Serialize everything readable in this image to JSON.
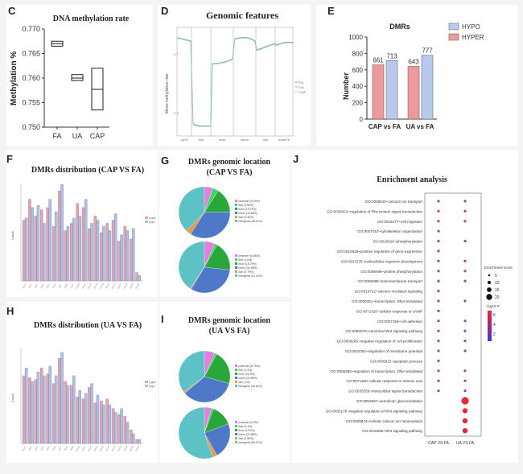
{
  "panels": {
    "C": {
      "label": "C",
      "title": "DNA methylation rate",
      "ylabel": "Methylation %",
      "yticks": [
        "0.770",
        "0.765",
        "0.760",
        "0.755",
        "0.750"
      ],
      "groups": [
        {
          "name": "FA",
          "low": 0.7665,
          "mid": 0.767,
          "high": 0.7675
        },
        {
          "name": "UA",
          "low": 0.7595,
          "mid": 0.76,
          "high": 0.7607
        },
        {
          "name": "CAP",
          "low": 0.7535,
          "mid": 0.7577,
          "high": 0.762
        }
      ]
    },
    "D": {
      "label": "D",
      "title": "Genomic features",
      "ylabel": "Mean methylation rate",
      "regions": [
        "upTk",
        "5utr",
        "exon",
        "intron",
        "3utr",
        "downTk"
      ],
      "legend": [
        "FA",
        "UA",
        "CAP"
      ]
    },
    "E": {
      "label": "E",
      "title": "DMRs",
      "ylabel": "Number",
      "legend": [
        {
          "name": "HYPO",
          "color": "#b9c9ee"
        },
        {
          "name": "HYPER",
          "color": "#ee9a9a"
        }
      ]
    },
    "F": {
      "label": "F",
      "title": "DMRs distribution  (CAP VS FA)",
      "ylabel": "Count",
      "legend": [
        "hyper",
        "hypo"
      ]
    },
    "G": {
      "label": "G",
      "title_line1": "DMRs genomic location",
      "title_line2": "(CAP VS FA)",
      "legend_top": [
        "promoter (5.45%)",
        "5utr (3.63%)",
        "exon (15.75%)",
        "intron (34.66%)",
        "3utr (3.34%)",
        "intergenic (38.01%)"
      ],
      "legend_bottom": [
        "promoter (6.86%)",
        "5utr (1.6%)",
        "exon (18.79%)",
        "intron (32.58%)",
        "3utr (0.79%)",
        "intergenic (41.41%)"
      ]
    },
    "H": {
      "label": "H",
      "title": "DMRs distribution  (UA VS FA)",
      "ylabel": "Count",
      "legend": [
        "hyper",
        "hypo"
      ]
    },
    "I": {
      "label": "I",
      "title_line1": "DMRs genomic location",
      "title_line2": "(UA VS FA)",
      "legend_top": [
        "promoter (6.75%)",
        "5utr (1.4%)",
        "exon (21.6%)",
        "intron (34.89%)",
        "3utr (1%)",
        "intergenic (35.61%)"
      ],
      "legend_bottom": [
        "promoter (4.5%)",
        "5utr (1.4%)",
        "exon (13.6%)",
        "intron (22.88%)",
        "3utr (2.86%)",
        "intergenic (55.97%)"
      ]
    },
    "J": {
      "label": "J",
      "title": "Enrichment analysis",
      "size_legend_title": "Enrichment score",
      "size_legend": [
        "5",
        "10",
        "15",
        "20"
      ],
      "color_legend_title": "-log10 P",
      "color_ticks": [
        "6",
        "4",
        "2"
      ],
      "xlabels": [
        "CAP VS FA",
        "UA VS FA"
      ]
    }
  },
  "chart_data": [
    {
      "type": "bar",
      "panel": "E",
      "title": "DMRs",
      "ylabel": "Number",
      "categories": [
        "CAP vs FA",
        "UA vs FA"
      ],
      "series": [
        {
          "name": "HYPER",
          "values": [
            661,
            643
          ]
        },
        {
          "name": "HYPO",
          "values": [
            713,
            777
          ]
        }
      ],
      "ylim": [
        0,
        1000
      ],
      "yticks": [
        0,
        200,
        400,
        600,
        800,
        1000
      ],
      "legend": "top-right"
    },
    {
      "type": "scatter",
      "panel": "J",
      "title": "Enrichment analysis",
      "x": [
        "CAP VS FA",
        "UA VS FA"
      ],
      "terms": [
        {
          "name": "GO:0006816~calcium ion transport",
          "cap": true,
          "ua": true
        },
        {
          "name": "GO:0035023~regulation of Rho protein signal transduction",
          "cap": true,
          "ua": true
        },
        {
          "name": "GO:0016477~cell migration",
          "cap": true,
          "ua": true
        },
        {
          "name": "GO:0007010~cytoskeleton organization",
          "cap": true,
          "ua": false
        },
        {
          "name": "GO:0016310~phosphorylation",
          "cap": true,
          "ua": true
        },
        {
          "name": "GO:0010628~positive regulation of gene expression",
          "cap": true,
          "ua": false
        },
        {
          "name": "GO:0007275~multicellular organism development",
          "cap": true,
          "ua": true
        },
        {
          "name": "GO:0006468~protein phosphorylation",
          "cap": true,
          "ua": true
        },
        {
          "name": "GO:0055085~transmembrane transport",
          "cap": true,
          "ua": true
        },
        {
          "name": "GO:0019722~calcium-mediated signaling",
          "cap": true,
          "ua": false
        },
        {
          "name": "GO:0006351~transcription, DNA-templated",
          "cap": true,
          "ua": true
        },
        {
          "name": "GO:0071320~cellular response to cAMP",
          "cap": true,
          "ua": false
        },
        {
          "name": "GO:0007155~cell adhesion",
          "cap": true,
          "ua": true
        },
        {
          "name": "GO:0060070~canonical Wnt signaling pathway",
          "cap": true,
          "ua": true
        },
        {
          "name": "GO:0008285~negative regulation of cell proliferation",
          "cap": true,
          "ua": true
        },
        {
          "name": "GO:0042391~regulation of membrane potential",
          "cap": true,
          "ua": true
        },
        {
          "name": "GO:0006915~apoptotic process",
          "cap": true,
          "ua": false
        },
        {
          "name": "GO:0006355~regulation of transcription, DNA-templated",
          "cap": true,
          "ua": true
        },
        {
          "name": "GO:0071300~cellular response to retinoic acid",
          "cap": true,
          "ua": true
        },
        {
          "name": "GO:0035556~intracellular signal transduction",
          "cap": true,
          "ua": true
        },
        {
          "name": "GO:0052697~xenobiotic glucuronidation",
          "cap": false,
          "ua": true
        },
        {
          "name": "GO:0030178~negative regulation of Wnt signaling pathway",
          "cap": false,
          "ua": true
        },
        {
          "name": "GO:0006874~cellular calcium ion homeostasis",
          "cap": false,
          "ua": true
        },
        {
          "name": "GO:0016055~Wnt signaling pathway",
          "cap": false,
          "ua": true
        }
      ]
    },
    {
      "type": "pie",
      "panel": "G-top",
      "values": [
        5.45,
        3.63,
        15.75,
        34.66,
        3.34,
        38.01
      ]
    },
    {
      "type": "pie",
      "panel": "G-bottom",
      "values": [
        6.86,
        1.6,
        18.79,
        32.58,
        0.79,
        41.41
      ]
    },
    {
      "type": "pie",
      "panel": "I-top",
      "values": [
        6.75,
        1.4,
        21.6,
        34.89,
        1,
        35.61
      ]
    },
    {
      "type": "pie",
      "panel": "I-bottom",
      "values": [
        4.5,
        1.4,
        13.6,
        22.88,
        2.86,
        55.97
      ]
    }
  ]
}
